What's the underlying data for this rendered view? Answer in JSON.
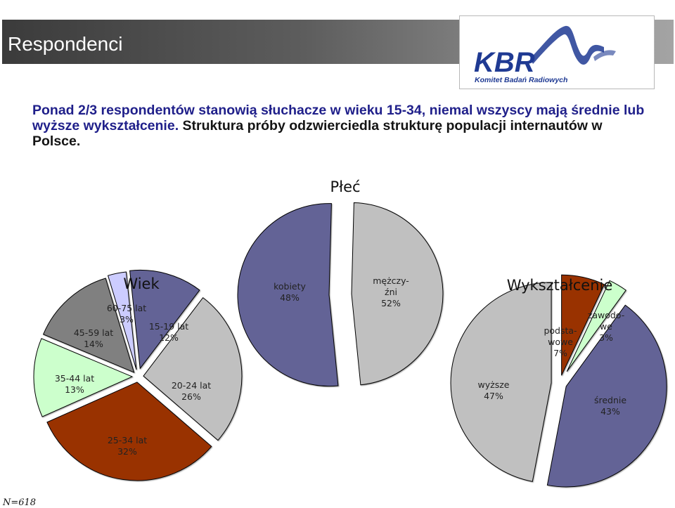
{
  "header": {
    "title": "Respondenci"
  },
  "logo": {
    "name": "KBR",
    "tagline": "Komitet Badań Radiowych",
    "icon": "kbr-logo"
  },
  "intro": {
    "lead": "Ponad 2/3 respondentów stanowią słuchacze w wieku 15-34, niemal wszyscy mają średnie lub wyższe wykształcenie.",
    "rest": " Struktura próby odzwierciedla strukturę populacji internautów w Polsce."
  },
  "footnote": "N=618",
  "chart_data": [
    {
      "type": "pie",
      "title": "Płeć",
      "slices": [
        {
          "label": [
            "kobiety",
            "48%"
          ],
          "value": 48,
          "color": "#c0c0c0"
        },
        {
          "label": [
            "mężczy-",
            "źni",
            "52%"
          ],
          "value": 52,
          "color": "#646496"
        }
      ]
    },
    {
      "type": "pie",
      "title": "Wiek",
      "slices": [
        {
          "label": [
            "15-19 lat",
            "12%"
          ],
          "value": 12,
          "color": "#646496"
        },
        {
          "label": [
            "20-24 lat",
            "26%"
          ],
          "value": 26,
          "color": "#c0c0c0"
        },
        {
          "label": [
            "25-34 lat",
            "32%"
          ],
          "value": 32,
          "color": "#993300"
        },
        {
          "label": [
            "35-44 lat",
            "13%"
          ],
          "value": 13,
          "color": "#ccffcc"
        },
        {
          "label": [
            "45-59 lat",
            "14%"
          ],
          "value": 14,
          "color": "#808080"
        },
        {
          "label": [
            "60-75 lat",
            "3%"
          ],
          "value": 3,
          "color": "#ccccff"
        }
      ]
    },
    {
      "type": "pie",
      "title": "Wykształcenie",
      "slices": [
        {
          "label": [
            "podsta-",
            "wowe",
            "7%"
          ],
          "value": 7,
          "color": "#993300"
        },
        {
          "label": [
            "zawodo-",
            "we",
            "3%"
          ],
          "value": 3,
          "color": "#ccffcc"
        },
        {
          "label": [
            "średnie",
            "43%"
          ],
          "value": 43,
          "color": "#646496"
        },
        {
          "label": [
            "wyższe",
            "47%"
          ],
          "value": 47,
          "color": "#c0c0c0"
        }
      ]
    }
  ]
}
